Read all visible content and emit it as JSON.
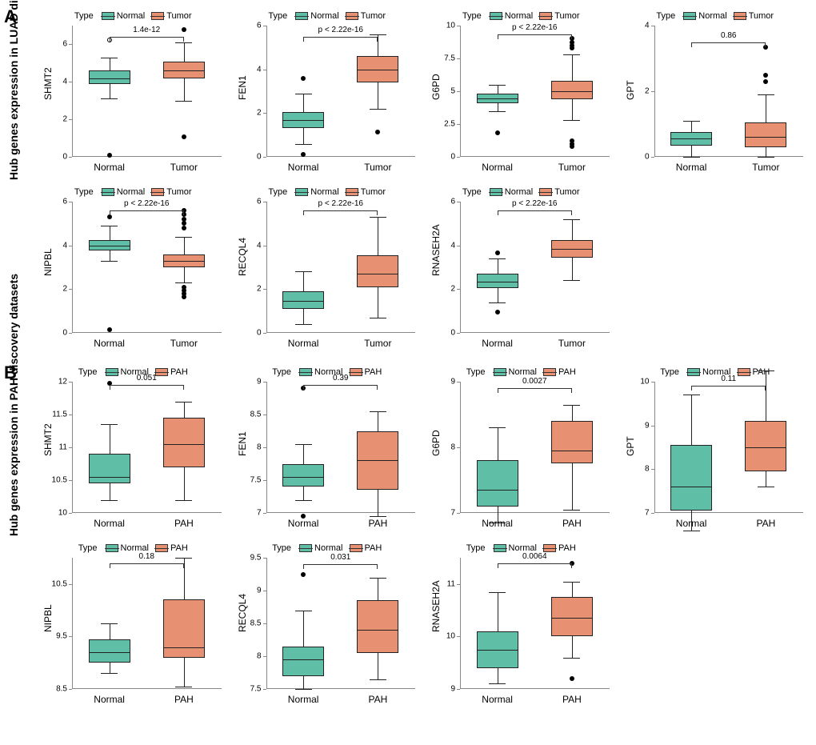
{
  "colors": {
    "normal": "#5fbfa6",
    "second": "#e89172",
    "border": "#222222",
    "bg": "#ffffff",
    "grid": "#dddddd",
    "tick": "#888888",
    "text": "#000000"
  },
  "fonts": {
    "section_label_size_pt": 18,
    "axis_title_size_pt": 12,
    "tick_size_pt": 9,
    "legend_size_pt": 10,
    "p_size_pt": 9
  },
  "sections": [
    {
      "id": "A",
      "label": "A",
      "y_axis_title": "Hub genes expression in LUAD discovery datasets",
      "legend_type_label": "Type",
      "legend_labels": [
        "Normal",
        "Tumor"
      ],
      "x_categories": [
        "Normal",
        "Tumor"
      ],
      "charts": [
        {
          "gene": "SHMT2",
          "p": "1.4e-12",
          "ymin": 0,
          "ymax": 7,
          "ystep": 2,
          "pbar_y": 6.4,
          "boxes": [
            {
              "q1": 3.9,
              "med": 4.2,
              "q3": 4.6,
              "wlo": 3.1,
              "whi": 5.3,
              "outliers": [
                {
                  "y": 6.25,
                  "open": true
                },
                {
                  "y": 0.1
                }
              ]
            },
            {
              "q1": 4.2,
              "med": 4.6,
              "q3": 5.1,
              "wlo": 3.0,
              "whi": 6.1,
              "outliers": [
                {
                  "y": 6.8
                },
                {
                  "y": 1.05
                }
              ]
            }
          ]
        },
        {
          "gene": "FEN1",
          "p": "p < 2.22e-16",
          "ymin": 0,
          "ymax": 6,
          "ystep": 2,
          "pbar_y": 5.5,
          "boxes": [
            {
              "q1": 1.3,
              "med": 1.7,
              "q3": 2.05,
              "wlo": 0.6,
              "whi": 2.9,
              "outliers": [
                {
                  "y": 3.6
                },
                {
                  "y": 0.1
                }
              ]
            },
            {
              "q1": 3.4,
              "med": 4.0,
              "q3": 4.6,
              "wlo": 2.2,
              "whi": 5.6,
              "outliers": [
                {
                  "y": 1.15
                }
              ]
            }
          ]
        },
        {
          "gene": "G6PD",
          "p": "p < 2.22e-16",
          "ymin": 0,
          "ymax": 10,
          "ystep": 2.5,
          "pbar_y": 9.3,
          "boxes": [
            {
              "q1": 4.1,
              "med": 4.45,
              "q3": 4.8,
              "wlo": 3.5,
              "whi": 5.5,
              "outliers": [
                {
                  "y": 1.8
                }
              ]
            },
            {
              "q1": 4.4,
              "med": 5.0,
              "q3": 5.8,
              "wlo": 2.8,
              "whi": 7.8,
              "outliers": [
                {
                  "y": 9.0
                },
                {
                  "y": 8.7
                },
                {
                  "y": 8.5
                },
                {
                  "y": 8.3
                },
                {
                  "y": 1.2
                },
                {
                  "y": 1.0
                },
                {
                  "y": 0.8
                }
              ]
            }
          ]
        },
        {
          "gene": "GPT",
          "p": "0.86",
          "ymin": 0,
          "ymax": 4,
          "ystep": 2,
          "pbar_y": 3.5,
          "boxes": [
            {
              "q1": 0.35,
              "med": 0.55,
              "q3": 0.75,
              "wlo": 0.0,
              "whi": 1.1,
              "outliers": []
            },
            {
              "q1": 0.3,
              "med": 0.6,
              "q3": 1.05,
              "wlo": 0.0,
              "whi": 1.9,
              "outliers": [
                {
                  "y": 3.35
                },
                {
                  "y": 2.5
                },
                {
                  "y": 2.3
                }
              ]
            }
          ]
        },
        {
          "gene": "NIPBL",
          "p": "p < 2.22e-16",
          "ymin": 0,
          "ymax": 6,
          "ystep": 2,
          "pbar_y": 5.6,
          "boxes": [
            {
              "q1": 3.75,
              "med": 4.0,
              "q3": 4.25,
              "wlo": 3.3,
              "whi": 4.9,
              "outliers": [
                {
                  "y": 5.3
                },
                {
                  "y": 0.15
                }
              ]
            },
            {
              "q1": 3.0,
              "med": 3.3,
              "q3": 3.6,
              "wlo": 2.3,
              "whi": 4.4,
              "outliers": [
                {
                  "y": 5.6
                },
                {
                  "y": 5.4
                },
                {
                  "y": 5.2
                },
                {
                  "y": 5.0
                },
                {
                  "y": 4.8
                },
                {
                  "y": 2.1
                },
                {
                  "y": 1.95
                },
                {
                  "y": 1.8
                },
                {
                  "y": 1.65
                }
              ]
            }
          ]
        },
        {
          "gene": "RECQL4",
          "p": "p < 2.22e-16",
          "ymin": 0,
          "ymax": 6,
          "ystep": 2,
          "pbar_y": 5.6,
          "boxes": [
            {
              "q1": 1.1,
              "med": 1.45,
              "q3": 1.9,
              "wlo": 0.4,
              "whi": 2.8,
              "outliers": []
            },
            {
              "q1": 2.1,
              "med": 2.7,
              "q3": 3.55,
              "wlo": 0.7,
              "whi": 5.3,
              "outliers": []
            }
          ]
        },
        {
          "gene": "RNASEH2A",
          "p": "p < 2.22e-16",
          "ymin": 0,
          "ymax": 6,
          "ystep": 2,
          "pbar_y": 5.6,
          "boxes": [
            {
              "q1": 2.05,
              "med": 2.35,
              "q3": 2.7,
              "wlo": 1.4,
              "whi": 3.4,
              "outliers": [
                {
                  "y": 3.65
                },
                {
                  "y": 0.95
                }
              ]
            },
            {
              "q1": 3.45,
              "med": 3.85,
              "q3": 4.25,
              "wlo": 2.4,
              "whi": 5.2,
              "outliers": []
            }
          ]
        }
      ]
    },
    {
      "id": "B",
      "label": "B",
      "y_axis_title": "Hub genes expression in PAH discovery datasets",
      "legend_type_label": "Type",
      "legend_labels": [
        "Normal",
        "PAH"
      ],
      "x_categories": [
        "Normal",
        "PAH"
      ],
      "charts": [
        {
          "gene": "SHMT2",
          "p": "0.051",
          "ymin": 10.0,
          "ymax": 12.0,
          "ystep": 0.5,
          "pbar_y": 11.95,
          "boxes": [
            {
              "q1": 10.45,
              "med": 10.55,
              "q3": 10.9,
              "wlo": 10.2,
              "whi": 11.35,
              "outliers": [
                {
                  "y": 11.97
                }
              ]
            },
            {
              "q1": 10.7,
              "med": 11.05,
              "q3": 11.45,
              "wlo": 10.2,
              "whi": 11.7,
              "outliers": []
            }
          ]
        },
        {
          "gene": "FEN1",
          "p": "0.39",
          "ymin": 7.0,
          "ymax": 9.0,
          "ystep": 0.5,
          "pbar_y": 8.95,
          "boxes": [
            {
              "q1": 7.4,
              "med": 7.55,
              "q3": 7.75,
              "wlo": 7.2,
              "whi": 8.05,
              "outliers": [
                {
                  "y": 8.9
                },
                {
                  "y": 6.95
                }
              ]
            },
            {
              "q1": 7.35,
              "med": 7.8,
              "q3": 8.25,
              "wlo": 6.95,
              "whi": 8.55,
              "outliers": []
            }
          ]
        },
        {
          "gene": "G6PD",
          "p": "0.0027",
          "ymin": 7.0,
          "ymax": 9.0,
          "ystep": 1.0,
          "pbar_y": 8.9,
          "boxes": [
            {
              "q1": 7.1,
              "med": 7.35,
              "q3": 7.8,
              "wlo": 6.85,
              "whi": 8.3,
              "outliers": []
            },
            {
              "q1": 7.75,
              "med": 7.95,
              "q3": 8.4,
              "wlo": 7.05,
              "whi": 8.65,
              "outliers": []
            }
          ]
        },
        {
          "gene": "GPT",
          "p": "0.11",
          "ymin": 7.0,
          "ymax": 10.0,
          "ystep": 1.0,
          "pbar_y": 9.9,
          "boxes": [
            {
              "q1": 7.05,
              "med": 7.6,
              "q3": 8.55,
              "wlo": 6.6,
              "whi": 9.7,
              "outliers": []
            },
            {
              "q1": 7.95,
              "med": 8.5,
              "q3": 9.1,
              "wlo": 7.6,
              "whi": 10.25,
              "outliers": []
            }
          ]
        },
        {
          "gene": "NIPBL",
          "p": "0.18",
          "ymin": 8.5,
          "ymax": 11.0,
          "ystep": 1.0,
          "pbar_y": 10.9,
          "boxes": [
            {
              "q1": 9.0,
              "med": 9.2,
              "q3": 9.45,
              "wlo": 8.8,
              "whi": 9.75,
              "outliers": []
            },
            {
              "q1": 9.1,
              "med": 9.3,
              "q3": 10.2,
              "wlo": 8.55,
              "whi": 11.0,
              "outliers": []
            }
          ]
        },
        {
          "gene": "RECQL4",
          "p": "0.031",
          "ymin": 7.5,
          "ymax": 9.5,
          "ystep": 0.5,
          "pbar_y": 9.4,
          "boxes": [
            {
              "q1": 7.7,
              "med": 7.95,
              "q3": 8.15,
              "wlo": 7.5,
              "whi": 8.7,
              "outliers": [
                {
                  "y": 9.25
                }
              ]
            },
            {
              "q1": 8.05,
              "med": 8.4,
              "q3": 8.85,
              "wlo": 7.65,
              "whi": 9.2,
              "outliers": []
            }
          ]
        },
        {
          "gene": "RNASEH2A",
          "p": "0.0064",
          "ymin": 9.0,
          "ymax": 11.5,
          "ystep": 1.0,
          "pbar_y": 11.4,
          "boxes": [
            {
              "q1": 9.4,
              "med": 9.75,
              "q3": 10.1,
              "wlo": 9.1,
              "whi": 10.85,
              "outliers": []
            },
            {
              "q1": 10.0,
              "med": 10.35,
              "q3": 10.75,
              "wlo": 9.6,
              "whi": 11.05,
              "outliers": [
                {
                  "y": 11.4
                },
                {
                  "y": 9.2
                }
              ]
            }
          ]
        }
      ]
    }
  ]
}
